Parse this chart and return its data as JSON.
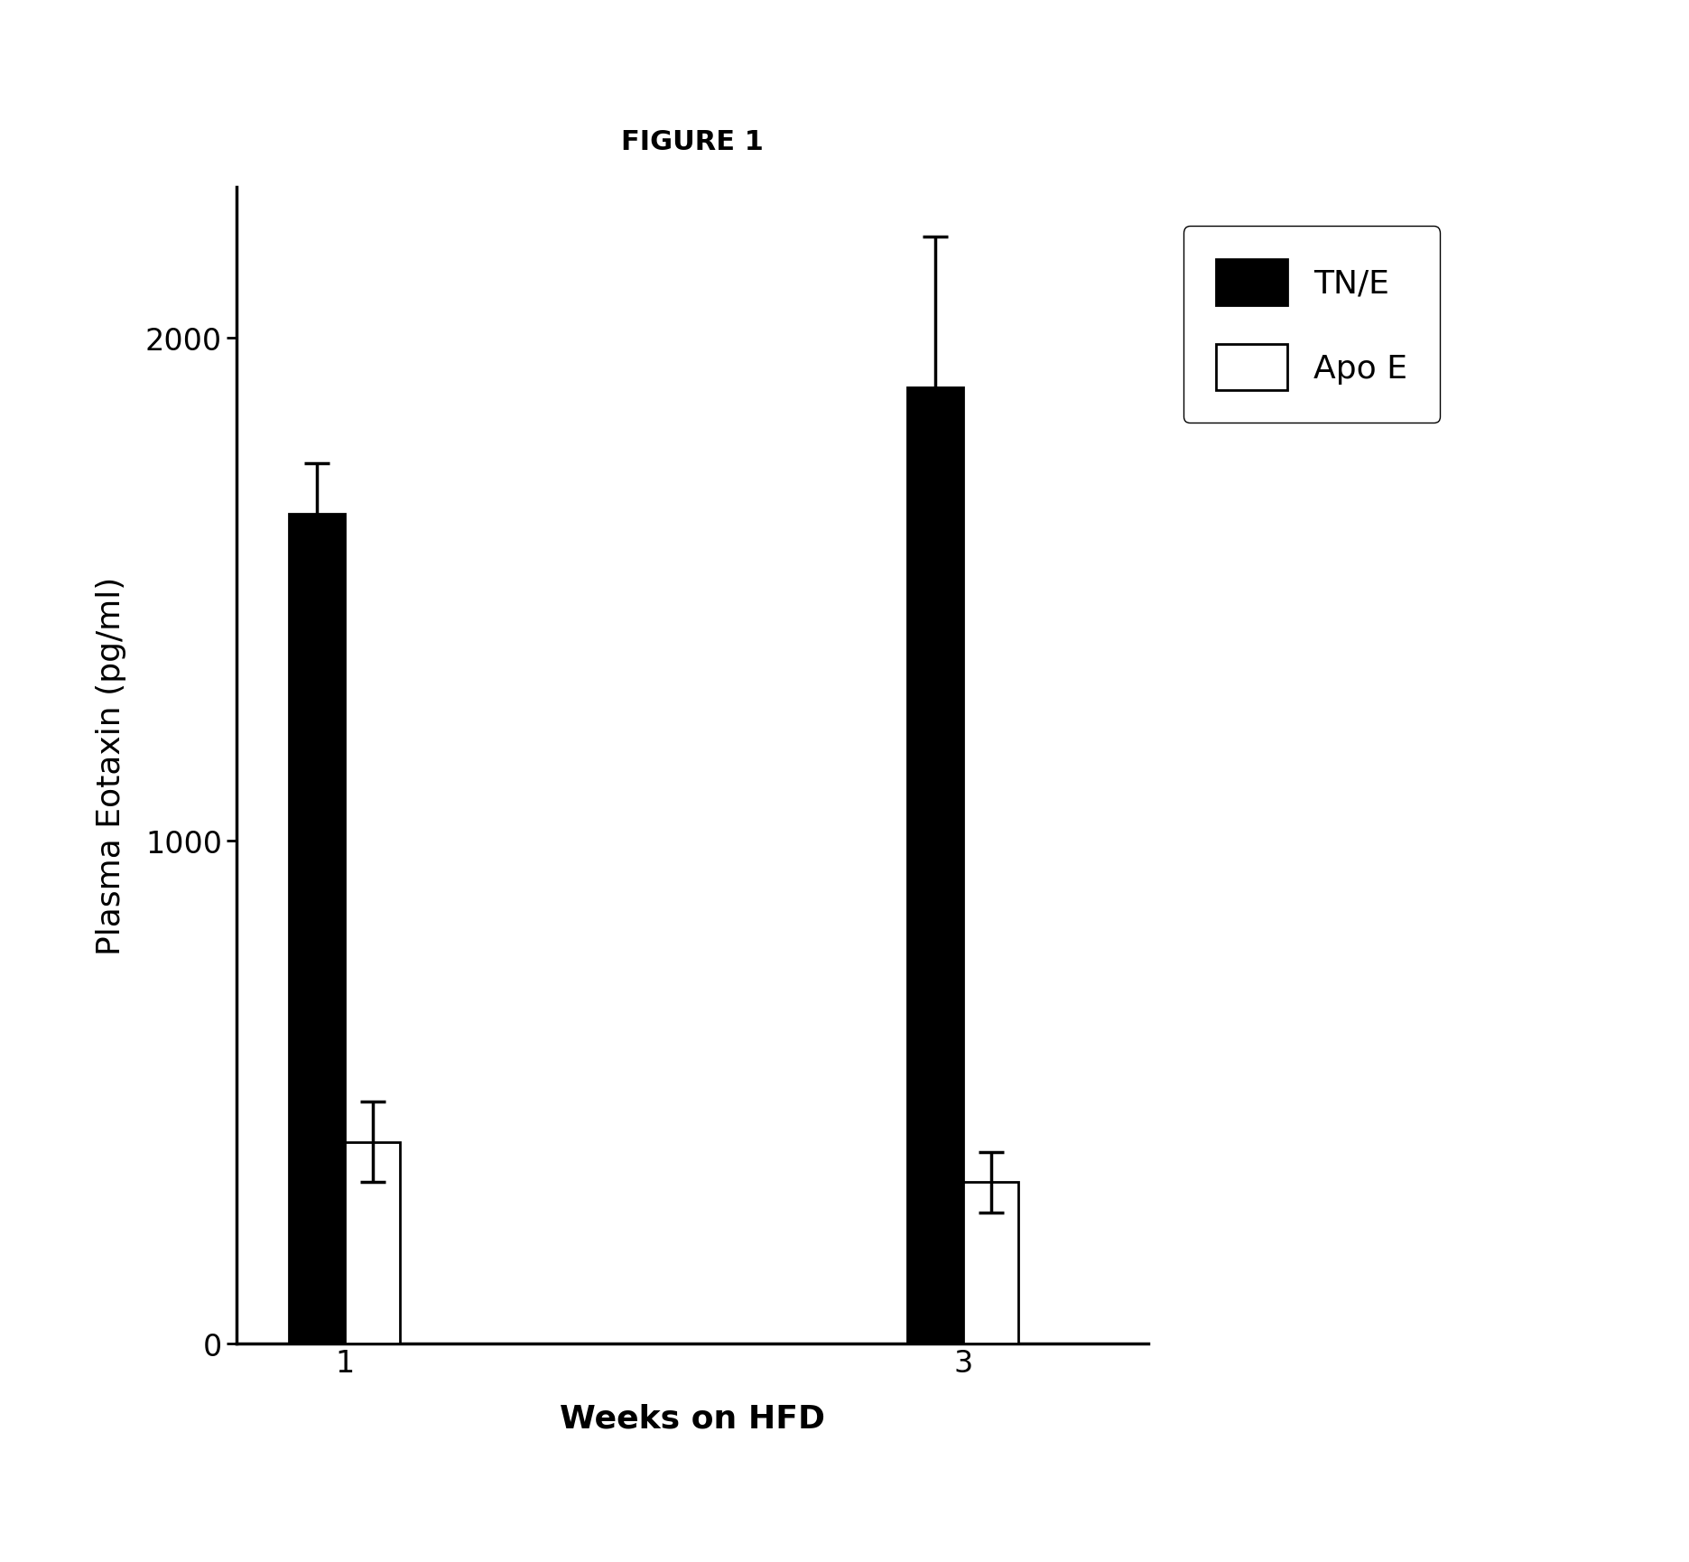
{
  "title": "FIGURE 1",
  "xlabel": "Weeks on HFD",
  "ylabel": "Plasma Eotaxin (pg/ml)",
  "weeks": [
    "1",
    "3"
  ],
  "tne_values": [
    1650,
    1900
  ],
  "tne_errors": [
    100,
    300
  ],
  "apoe_values": [
    400,
    320
  ],
  "apoe_errors": [
    80,
    60
  ],
  "ylim": [
    0,
    2300
  ],
  "yticks": [
    0,
    1000,
    2000
  ],
  "bar_width": 0.18,
  "group_centers": [
    1.0,
    3.0
  ],
  "tne_color": "#000000",
  "apoe_color": "#ffffff",
  "legend_tne": "TN/E",
  "legend_apoe": "Apo E",
  "background_color": "#ffffff",
  "title_fontsize": 22,
  "axis_label_fontsize": 26,
  "tick_fontsize": 24,
  "legend_fontsize": 26
}
